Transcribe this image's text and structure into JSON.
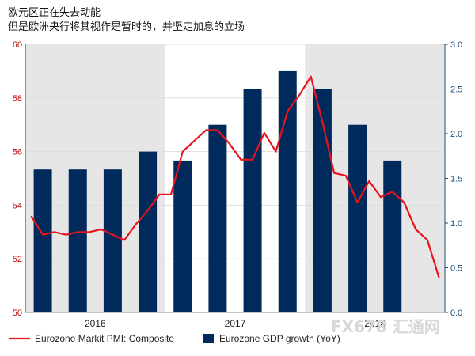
{
  "title": "欧元区正在失去动能",
  "subtitle": "但是欧洲央行将其视作是暂时的，并坚定加息的立场",
  "watermark": "FX678 汇通网",
  "colors": {
    "line": "#e8141b",
    "bar": "#002a5c",
    "shade": "#e6e6e6",
    "grid": "#dddddd"
  },
  "chart_data": {
    "type": "bar+line",
    "x_labels": [
      "2016",
      "2017",
      "2018"
    ],
    "left_axis": {
      "ticks": [
        50,
        52,
        54,
        56,
        58,
        60
      ],
      "ylim": [
        50,
        60
      ]
    },
    "right_axis": {
      "ticks": [
        "0.0",
        "0.5",
        "1.0",
        "1.5",
        "2.0",
        "2.5",
        "3.0"
      ],
      "ylim": [
        0,
        3
      ]
    },
    "shaded_periods": [
      "2016",
      "2018"
    ],
    "series": [
      {
        "name": "Eurozone GDP growth (YoY)",
        "type": "bar",
        "axis": "right",
        "quarters": [
          "2016 Q1",
          "2016 Q2",
          "2016 Q3",
          "2016 Q4",
          "2017 Q1",
          "2017 Q2",
          "2017 Q3",
          "2017 Q4",
          "2018 Q1",
          "2018 Q2",
          "2018 Q3"
        ],
        "values": [
          1.6,
          1.6,
          1.6,
          1.8,
          1.7,
          2.1,
          2.5,
          2.7,
          2.5,
          2.1,
          1.7
        ]
      },
      {
        "name": "Eurozone Markit PMI: Composite",
        "type": "line",
        "axis": "left",
        "months": [
          "2016-01",
          "2016-02",
          "2016-03",
          "2016-04",
          "2016-05",
          "2016-06",
          "2016-07",
          "2016-08",
          "2016-09",
          "2016-10",
          "2016-11",
          "2016-12",
          "2017-01",
          "2017-02",
          "2017-03",
          "2017-04",
          "2017-05",
          "2017-06",
          "2017-07",
          "2017-08",
          "2017-09",
          "2017-10",
          "2017-11",
          "2017-12",
          "2018-01",
          "2018-02",
          "2018-03",
          "2018-04",
          "2018-05",
          "2018-06",
          "2018-07",
          "2018-08",
          "2018-09",
          "2018-10",
          "2018-11",
          "2018-12"
        ],
        "values": [
          53.6,
          52.9,
          53.0,
          52.9,
          53.0,
          53.0,
          53.1,
          52.9,
          52.7,
          53.3,
          53.8,
          54.4,
          54.4,
          56.0,
          56.4,
          56.8,
          56.8,
          56.3,
          55.7,
          55.7,
          56.7,
          56.0,
          57.5,
          58.1,
          58.8,
          57.1,
          55.2,
          55.1,
          54.1,
          54.9,
          54.3,
          54.5,
          54.1,
          53.1,
          52.7,
          51.3
        ]
      }
    ]
  }
}
